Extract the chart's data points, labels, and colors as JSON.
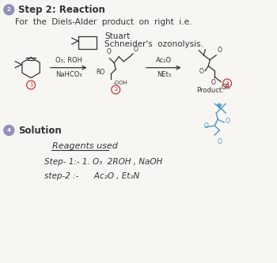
{
  "background_color": "#f8f6f2",
  "title_circle_color": "#9090bb",
  "title_text": "Step 2: Reaction",
  "title_fontsize": 8.5,
  "body_fontsize": 7.5,
  "small_fontsize": 6.0,
  "tiny_fontsize": 5.5,
  "line1": "For  the  Diels-Alder  product  on  right  i.e.",
  "line2": "Schneider's  ozonolysis.",
  "line2_prefix": "Stuart",
  "reagent_title": "Reagents used",
  "step1": "Step- 1:- 1. O₃  2ROH , NaOH",
  "step2": "step-2 :-      Ac₂O , Et₂N",
  "solution_text": "Solution",
  "solution_circle_color": "#9090bb",
  "red_circle_color": "#cc3333",
  "blue_color": "#4499cc",
  "arrow_color": "#333333",
  "text_color": "#333333",
  "reagent1_top": "O₃, ROH",
  "reagent1_bot": "NaHCO₃",
  "reagent2_top": "Ac₂O",
  "reagent2_bot": "NEt₃",
  "product_text": "Product."
}
